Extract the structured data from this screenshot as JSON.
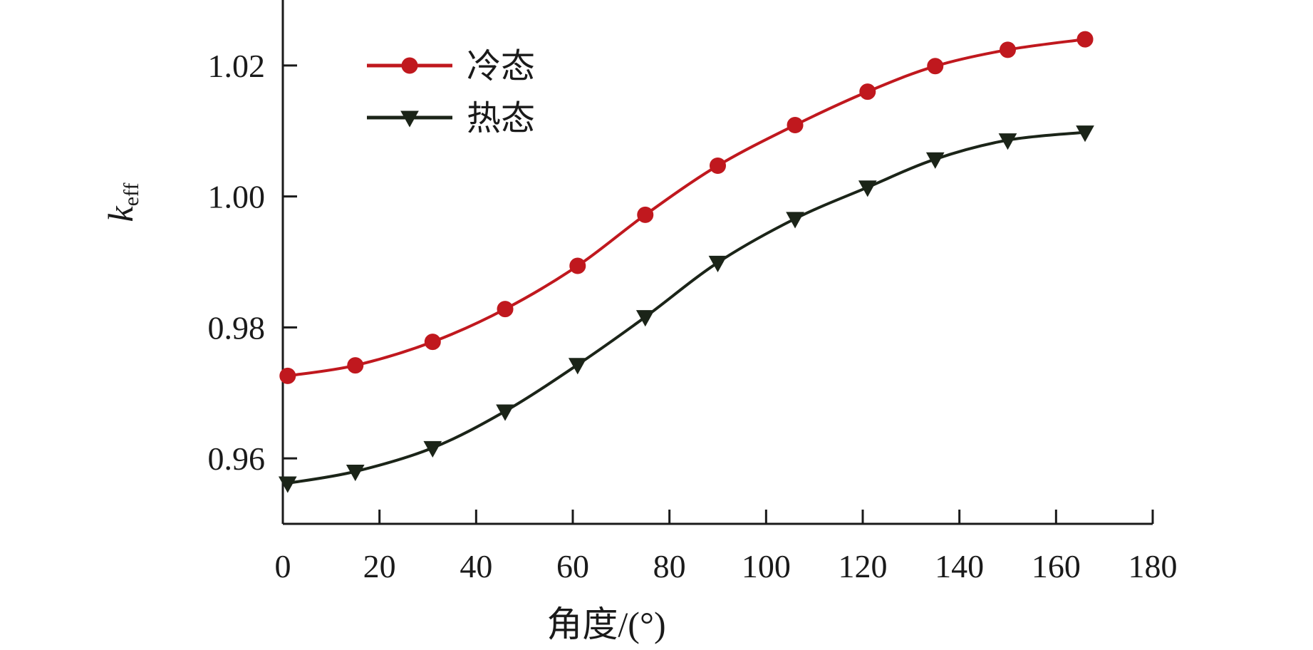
{
  "chart_data": {
    "type": "line",
    "xlabel": "角度/(°)",
    "ylabel_main": "k",
    "ylabel_sub": "eff",
    "xlim": [
      0,
      180
    ],
    "ylim": [
      0.95,
      1.03
    ],
    "x_ticks": [
      0,
      20,
      40,
      60,
      80,
      100,
      120,
      140,
      160,
      180
    ],
    "x_tick_labels": [
      "0",
      "20",
      "40",
      "60",
      "80",
      "100",
      "120",
      "140",
      "160",
      "180"
    ],
    "y_ticks": [
      0.96,
      0.98,
      1.0,
      1.02
    ],
    "y_tick_labels": [
      "0.96",
      "0.98",
      "1.00",
      "1.02"
    ],
    "grid": false,
    "legend_position": "top-left",
    "x": [
      1,
      15,
      31,
      46,
      61,
      75,
      90,
      106,
      121,
      135,
      150,
      166
    ],
    "series": [
      {
        "name": "冷态",
        "color": "#c0181e",
        "marker": "circle",
        "values": [
          0.9726,
          0.9742,
          0.9778,
          0.9828,
          0.9894,
          0.9972,
          1.0047,
          1.0109,
          1.016,
          1.0199,
          1.0224,
          1.024
        ]
      },
      {
        "name": "热态",
        "color": "#1b2418",
        "marker": "triangle-down",
        "values": [
          0.9562,
          0.958,
          0.9616,
          0.9672,
          0.9743,
          0.9816,
          0.9899,
          0.9966,
          1.0014,
          1.0057,
          1.0086,
          1.0098
        ]
      }
    ]
  }
}
